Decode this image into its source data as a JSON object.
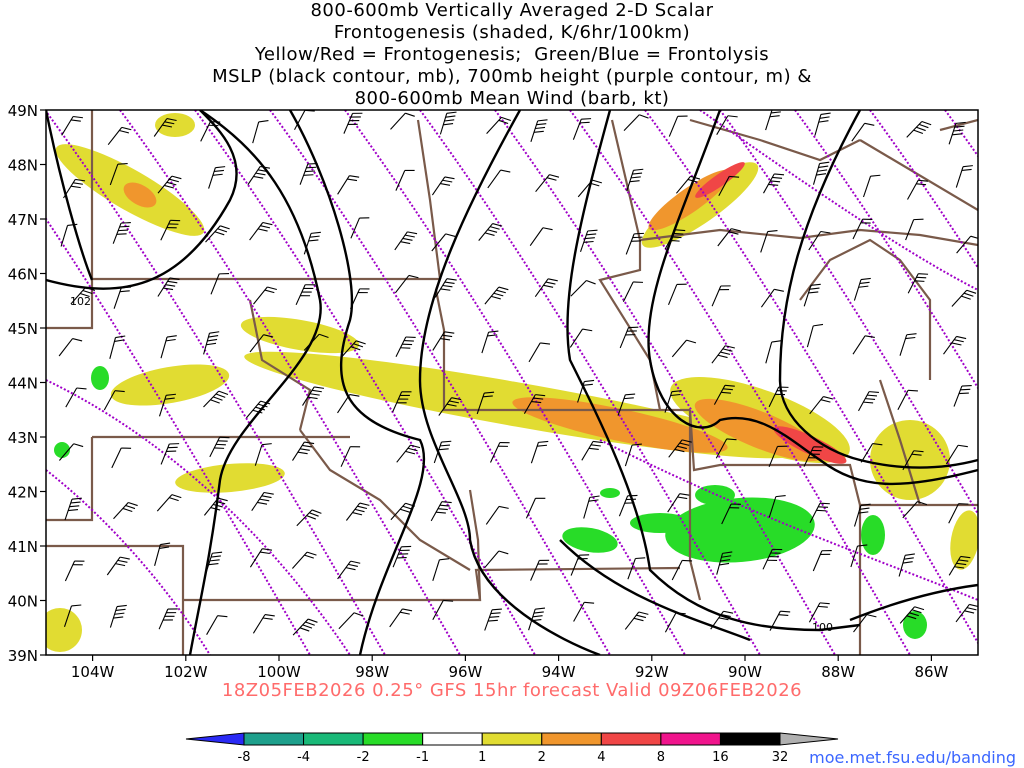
{
  "title": {
    "lines": [
      "800-600mb Vertically Averaged 2-D Scalar",
      "Frontogenesis (shaded, K/6hr/100km)",
      "Yellow/Red = Frontogenesis;  Green/Blue = Frontolysis",
      "MSLP (black contour, mb), 700mb height (purple contour, m) &",
      "800-600mb Mean Wind (barb, kt)"
    ]
  },
  "footer": {
    "valid_line": "18Z05FEB2026 0.25° GFS 15hr forecast Valid 09Z06FEB2026",
    "credit": "moe.met.fsu.edu/banding"
  },
  "map": {
    "lon_range": [
      -105,
      -85
    ],
    "lat_range": [
      39,
      49
    ],
    "lat_ticks": [
      "39N",
      "40N",
      "41N",
      "42N",
      "43N",
      "44N",
      "45N",
      "46N",
      "47N",
      "48N",
      "49N"
    ],
    "lon_ticks": [
      "104W",
      "102W",
      "100W",
      "98W",
      "96W",
      "94W",
      "92W",
      "90W",
      "88W",
      "86W"
    ],
    "contour_labels": [
      "102",
      "100"
    ],
    "colors": {
      "msl_contour": "#000000",
      "height_contour": "#a000c8",
      "border": "#7a5a4a",
      "frontogenesis_weak": "#e1dc32",
      "frontogenesis_moderate": "#f0962d",
      "frontogenesis_strong": "#f04646",
      "frontolysis": "#28dc28"
    }
  },
  "colorbar": {
    "labels": [
      "-8",
      "-4",
      "-2",
      "-1",
      "1",
      "2",
      "4",
      "8",
      "16",
      "32"
    ],
    "colors": [
      "#2a2af5",
      "#1ea08c",
      "#19b978",
      "#28dc28",
      "#ffffff",
      "#e1dc32",
      "#f0962d",
      "#f04646",
      "#f0148c",
      "#000000",
      "#b0b0b0"
    ]
  }
}
